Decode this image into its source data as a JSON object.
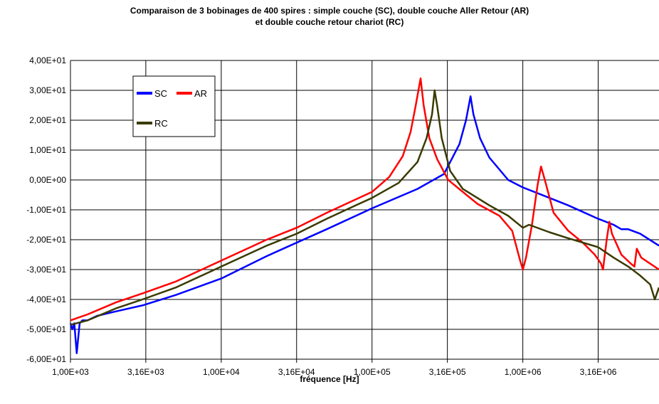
{
  "chart_data": {
    "type": "line",
    "title_line1": "Comparaison de 3 bobinages de 400 spires : simple couche (SC), double couche Aller Retour (AR)",
    "title_line2": "et double couche retour chariot (RC)",
    "xlabel": "fréquence [Hz]",
    "ylabel": "",
    "x_scale": "log",
    "xlim": [
      1000,
      8000000
    ],
    "ylim": [
      -60,
      40
    ],
    "x_ticks": [
      1000,
      3160,
      10000,
      31600,
      100000,
      316000,
      1000000,
      3160000
    ],
    "x_tick_labels": [
      "1,00E+03",
      "3,16E+03",
      "1,00E+04",
      "3,16E+04",
      "1,00E+05",
      "3,16E+05",
      "1,00E+06",
      "3,16E+06"
    ],
    "y_ticks": [
      40,
      30,
      20,
      10,
      0,
      -10,
      -20,
      -30,
      -40,
      -50,
      -60
    ],
    "y_tick_labels": [
      "4,00E+01",
      "3,00E+01",
      "2,00E+01",
      "1,00E+01",
      "0,00E+00",
      "-1,00E+01",
      "-2,00E+01",
      "-3,00E+01",
      "-4,00E+01",
      "-5,00E+01",
      "-6,00E+01"
    ],
    "grid": true,
    "legend_position": "top-left",
    "series": [
      {
        "name": "SC",
        "color": "#0000ff",
        "points": [
          [
            1000,
            -48
          ],
          [
            1030,
            -50
          ],
          [
            1060,
            -48
          ],
          [
            1100,
            -58
          ],
          [
            1150,
            -48
          ],
          [
            1200,
            -47
          ],
          [
            1300,
            -47
          ],
          [
            1500,
            -45.5
          ],
          [
            2000,
            -44
          ],
          [
            3000,
            -42
          ],
          [
            5000,
            -38.5
          ],
          [
            10000,
            -33
          ],
          [
            20000,
            -25.5
          ],
          [
            31600,
            -21
          ],
          [
            50000,
            -16.5
          ],
          [
            100000,
            -9.5
          ],
          [
            200000,
            -3
          ],
          [
            300000,
            2
          ],
          [
            380000,
            12
          ],
          [
            420000,
            20
          ],
          [
            450000,
            28
          ],
          [
            470000,
            22
          ],
          [
            520000,
            14
          ],
          [
            600000,
            7.5
          ],
          [
            800000,
            0
          ],
          [
            1000000,
            -2.5
          ],
          [
            1500000,
            -6
          ],
          [
            2000000,
            -8.5
          ],
          [
            3160000,
            -13
          ],
          [
            4000000,
            -15
          ],
          [
            4500000,
            -16.5
          ],
          [
            5000000,
            -16.5
          ],
          [
            6000000,
            -18
          ],
          [
            8000000,
            -22
          ]
        ]
      },
      {
        "name": "AR",
        "color": "#ff0000",
        "points": [
          [
            1000,
            -47
          ],
          [
            1300,
            -45
          ],
          [
            2000,
            -41
          ],
          [
            3000,
            -38
          ],
          [
            5000,
            -34
          ],
          [
            10000,
            -27
          ],
          [
            20000,
            -20
          ],
          [
            31600,
            -16
          ],
          [
            50000,
            -11
          ],
          [
            100000,
            -4
          ],
          [
            130000,
            1
          ],
          [
            160000,
            8
          ],
          [
            180000,
            16
          ],
          [
            195000,
            25
          ],
          [
            210000,
            34
          ],
          [
            220000,
            25
          ],
          [
            240000,
            14
          ],
          [
            270000,
            7
          ],
          [
            320000,
            0
          ],
          [
            500000,
            -8
          ],
          [
            700000,
            -12
          ],
          [
            850000,
            -17
          ],
          [
            960000,
            -27
          ],
          [
            1000000,
            -30
          ],
          [
            1050000,
            -26
          ],
          [
            1150000,
            -15
          ],
          [
            1250000,
            -2
          ],
          [
            1320000,
            4.5
          ],
          [
            1400000,
            0
          ],
          [
            1600000,
            -11
          ],
          [
            2000000,
            -17
          ],
          [
            2500000,
            -21
          ],
          [
            3000000,
            -25
          ],
          [
            3300000,
            -28
          ],
          [
            3400000,
            -30
          ],
          [
            3600000,
            -20
          ],
          [
            3750000,
            -14
          ],
          [
            3900000,
            -18
          ],
          [
            4500000,
            -25
          ],
          [
            5200000,
            -28
          ],
          [
            5500000,
            -29
          ],
          [
            5700000,
            -23
          ],
          [
            6100000,
            -26
          ],
          [
            8000000,
            -30
          ]
        ]
      },
      {
        "name": "RC",
        "color": "#3a3a00",
        "points": [
          [
            1000,
            -48.5
          ],
          [
            1300,
            -47
          ],
          [
            2000,
            -43
          ],
          [
            3000,
            -40
          ],
          [
            5000,
            -36
          ],
          [
            10000,
            -29
          ],
          [
            20000,
            -22
          ],
          [
            31600,
            -18
          ],
          [
            50000,
            -13
          ],
          [
            100000,
            -6
          ],
          [
            150000,
            -1
          ],
          [
            200000,
            6
          ],
          [
            230000,
            14
          ],
          [
            250000,
            22
          ],
          [
            260000,
            30
          ],
          [
            270000,
            25
          ],
          [
            290000,
            14
          ],
          [
            330000,
            3
          ],
          [
            400000,
            -3
          ],
          [
            600000,
            -8.5
          ],
          [
            800000,
            -12
          ],
          [
            1000000,
            -16
          ],
          [
            1100000,
            -15
          ],
          [
            1500000,
            -17.5
          ],
          [
            2000000,
            -19.5
          ],
          [
            3160000,
            -22.5
          ],
          [
            4000000,
            -26
          ],
          [
            5000000,
            -29
          ],
          [
            6000000,
            -32
          ],
          [
            7000000,
            -35
          ],
          [
            7500000,
            -40
          ],
          [
            8000000,
            -36
          ]
        ]
      }
    ]
  }
}
